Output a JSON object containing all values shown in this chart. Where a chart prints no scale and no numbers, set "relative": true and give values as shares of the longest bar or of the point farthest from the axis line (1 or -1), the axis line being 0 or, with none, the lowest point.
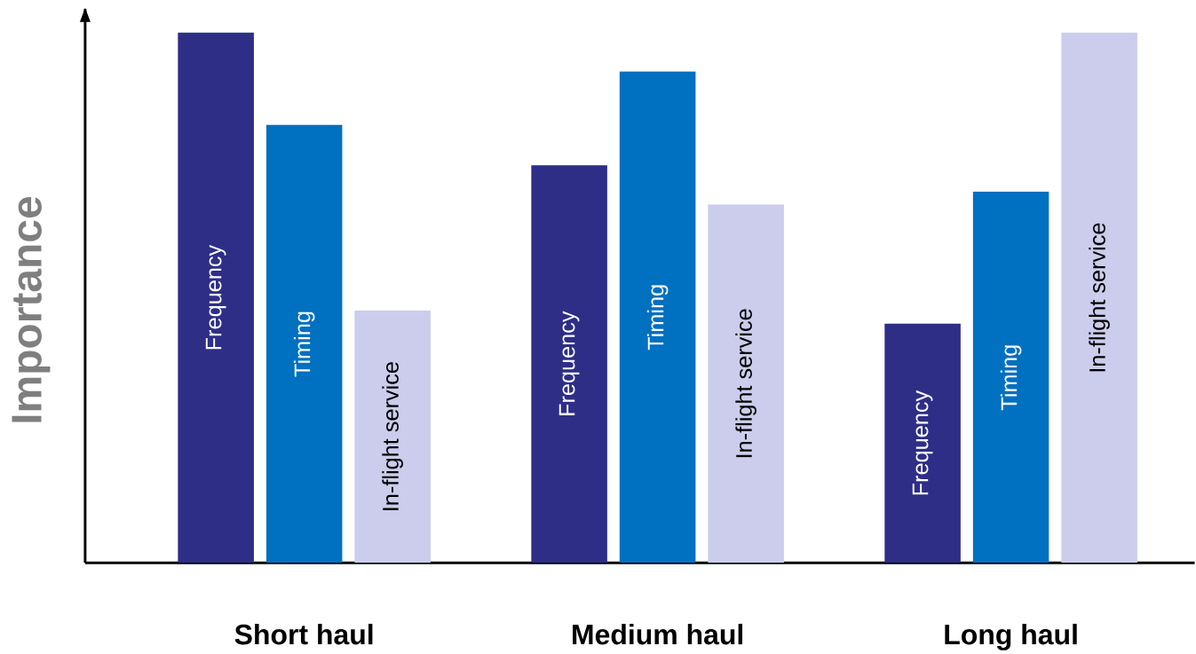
{
  "chart_data": {
    "type": "bar",
    "relative": true,
    "ylabel": "Importance",
    "categories": [
      "Short haul",
      "Medium haul",
      "Long haul"
    ],
    "series": [
      {
        "name": "Frequency",
        "color": "#2e2e87",
        "values": [
          1,
          0.75,
          0.451
        ]
      },
      {
        "name": "Timing",
        "color": "#0070c0",
        "values": [
          0.826,
          0.927,
          0.7
        ]
      },
      {
        "name": "In-flight service",
        "color": "#ccccec",
        "values": [
          0.476,
          0.676,
          1
        ]
      }
    ]
  }
}
